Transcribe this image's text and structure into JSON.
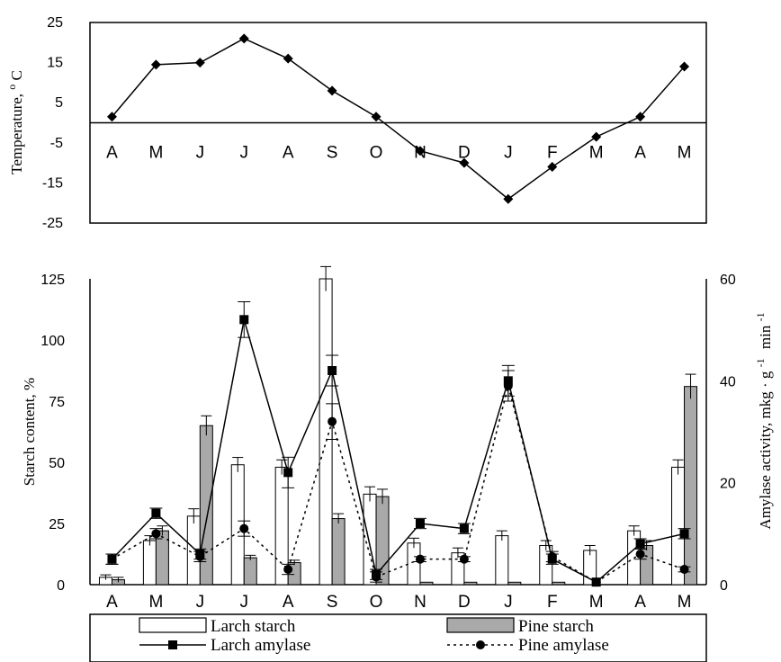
{
  "chart_data": [
    {
      "type": "line",
      "ylabel": "Temperature,",
      "ylabel_unit": "C",
      "ylabel_degree": "o",
      "ylim": [
        -25,
        25
      ],
      "yticks": [
        "25",
        "15",
        "5",
        "-5",
        "-15",
        "-25"
      ],
      "categories": [
        "A",
        "M",
        "J",
        "J",
        "A",
        "S",
        "O",
        "N",
        "D",
        "J",
        "F",
        "M",
        "A",
        "M"
      ],
      "series": [
        {
          "values": [
            1.5,
            14.5,
            15,
            21,
            16,
            8,
            1.5,
            -7,
            -10,
            -19,
            -11,
            -3.5,
            1.5,
            14
          ]
        }
      ],
      "grid": false,
      "marker": "diamond",
      "color": "#000000"
    },
    {
      "type": "bar",
      "ylabel": "Starch content, %",
      "y2label": "Amylase activity, mkg · g",
      "y2label_sup1": "-1",
      "y2label_tail": "min",
      "y2label_sup2": "-1",
      "ylim": [
        0,
        125
      ],
      "y2lim": [
        0,
        60
      ],
      "yticks": [
        "0",
        "25",
        "50",
        "75",
        "100",
        "125"
      ],
      "y2ticks": [
        "0",
        "20",
        "40",
        "60"
      ],
      "categories": [
        "A",
        "M",
        "J",
        "J",
        "A",
        "S",
        "O",
        "N",
        "D",
        "J",
        "F",
        "M",
        "A",
        "M"
      ],
      "series": [
        {
          "name": "Larch starch",
          "kind": "bar",
          "axis": "left",
          "fill": "#ffffff",
          "values": [
            3,
            18,
            28,
            49,
            48,
            125,
            37,
            17,
            13,
            20,
            16,
            14,
            22,
            48
          ],
          "errors": [
            1,
            2,
            3,
            3,
            3,
            5,
            3,
            2,
            2,
            2,
            2,
            2,
            2,
            3
          ]
        },
        {
          "name": "Pine starch",
          "kind": "bar",
          "axis": "left",
          "fill": "#a9a9a9",
          "values": [
            2,
            22,
            65,
            11,
            9,
            27,
            36,
            1,
            1,
            1,
            1,
            0,
            16,
            81
          ],
          "errors": [
            1,
            2,
            4,
            1,
            1,
            2,
            3,
            0,
            0,
            0,
            0,
            0,
            2,
            5
          ]
        },
        {
          "name": "Larch amylase",
          "kind": "line",
          "axis": "right",
          "dash": "solid",
          "marker": "square",
          "values": [
            5,
            14,
            6,
            52,
            22,
            42,
            2,
            12,
            11,
            40,
            5,
            0.5,
            8,
            10
          ],
          "errors": [
            1,
            1,
            1,
            3.5,
            3,
            3,
            1,
            1,
            1,
            3,
            1,
            0,
            1,
            1
          ]
        },
        {
          "name": "Pine amylase",
          "kind": "line",
          "axis": "right",
          "dash": "dotted",
          "marker": "circle",
          "values": [
            5,
            10,
            5.5,
            11,
            3,
            32,
            1.5,
            5,
            5,
            39,
            5.5,
            0.5,
            6,
            3
          ],
          "errors": [
            1,
            1,
            1,
            1.5,
            1,
            3.5,
            1,
            0.5,
            0.5,
            3,
            1,
            0,
            1,
            0.5
          ]
        }
      ]
    }
  ]
}
